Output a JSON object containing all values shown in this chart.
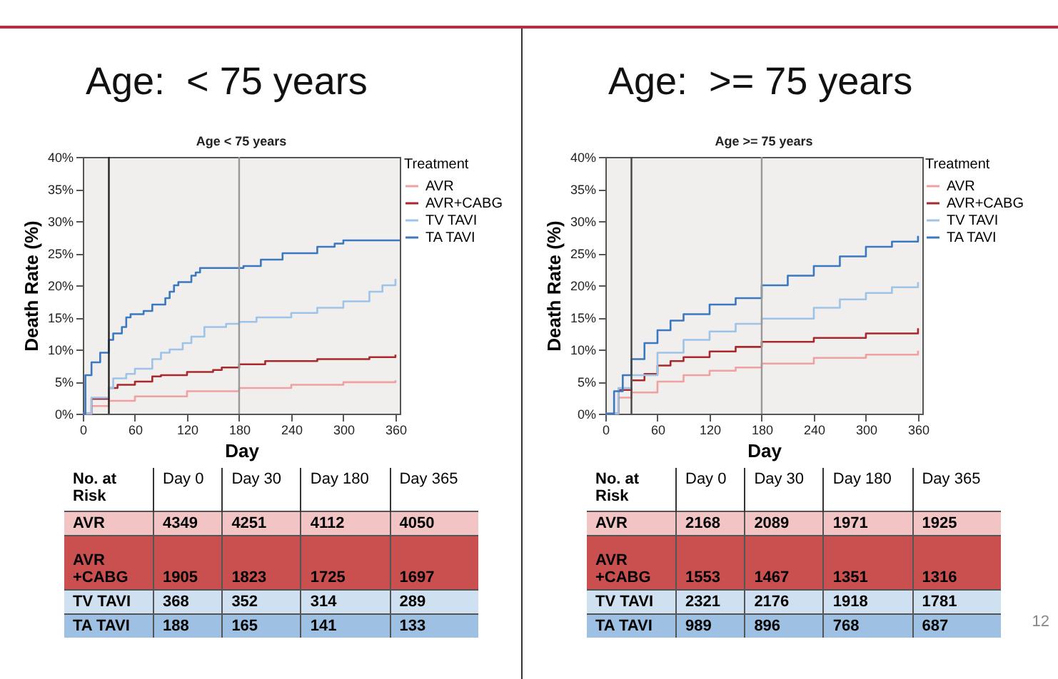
{
  "chart_data": [
    {
      "type": "step",
      "title": "Age:  < 75 years",
      "subtitle": "Age < 75 years",
      "xlabel": "Day",
      "ylabel": "Death Rate (%)",
      "legend_title": "Treatment",
      "legend": "right",
      "grid": false,
      "xlim": [
        0,
        365
      ],
      "xticks": [
        0,
        60,
        120,
        180,
        240,
        300,
        360
      ],
      "ylim": [
        0,
        40
      ],
      "yticks": [
        {
          "value": 0,
          "label": "0%"
        },
        {
          "value": 5,
          "label": "5%"
        },
        {
          "value": 10,
          "label": "10%"
        },
        {
          "value": 15,
          "label": "15%"
        },
        {
          "value": 20,
          "label": "20%"
        },
        {
          "value": 25,
          "label": "25%"
        },
        {
          "value": 30,
          "label": "30%"
        },
        {
          "value": 35,
          "label": "35%"
        },
        {
          "value": 40,
          "label": "40%"
        }
      ],
      "ref_lines": [
        {
          "axis": "x",
          "value": 30,
          "color": "#222222"
        },
        {
          "axis": "x",
          "value": 180,
          "color": "#999999"
        }
      ],
      "series": [
        {
          "name": "AVR",
          "color": "#f0a0a0",
          "x": [
            0,
            10,
            30,
            60,
            120,
            180,
            240,
            300,
            360
          ],
          "values": [
            0,
            1.2,
            2,
            2.7,
            3.5,
            4,
            4.5,
            4.9,
            5.2
          ]
        },
        {
          "name": "AVR+CABG",
          "color": "#a8282c",
          "x": [
            0,
            10,
            30,
            40,
            60,
            80,
            90,
            120,
            150,
            160,
            180,
            210,
            270,
            330,
            360
          ],
          "values": [
            0,
            2.3,
            4,
            4.5,
            5,
            5.8,
            6,
            6.5,
            6.8,
            7.2,
            7.7,
            8.2,
            8.5,
            8.8,
            9.2
          ]
        },
        {
          "name": "TV TAVI",
          "color": "#9dc3e6",
          "x": [
            0,
            10,
            30,
            35,
            50,
            60,
            80,
            90,
            100,
            115,
            125,
            140,
            165,
            180,
            200,
            240,
            270,
            300,
            330,
            345,
            360
          ],
          "values": [
            0,
            2.5,
            4,
            5.5,
            6.2,
            7,
            8.5,
            9.5,
            10,
            11,
            12,
            13.5,
            14,
            14.3,
            15,
            15.7,
            16.5,
            17.5,
            19,
            20,
            21
          ]
        },
        {
          "name": "TA TAVI",
          "color": "#3a78bf",
          "x": [
            0,
            3,
            10,
            20,
            30,
            35,
            45,
            50,
            55,
            70,
            80,
            95,
            100,
            105,
            110,
            125,
            130,
            135,
            185,
            205,
            230,
            270,
            290,
            300,
            365
          ],
          "values": [
            0,
            6,
            8,
            9.5,
            11.5,
            12.5,
            13.5,
            15,
            15.5,
            16,
            17,
            18,
            19,
            20,
            20.5,
            21.5,
            22,
            22.7,
            23,
            24,
            25,
            26,
            26.5,
            27,
            27
          ]
        }
      ],
      "annotations": [
        "No. at Risk",
        "Day 0",
        "Day 30",
        "Day 180",
        "Day 365",
        "AVR",
        "4349",
        "4251",
        "4112",
        "4050",
        "AVR +CABG",
        "1905",
        "1823",
        "1725",
        "1697",
        "TV TAVI",
        "368",
        "352",
        "314",
        "289",
        "TA TAVI",
        "188",
        "165",
        "141",
        "133"
      ]
    },
    {
      "type": "step",
      "title": "Age:  >= 75 years",
      "subtitle": "Age >= 75 years",
      "xlabel": "Day",
      "ylabel": "Death Rate (%)",
      "legend_title": "Treatment",
      "legend": "right",
      "grid": false,
      "xlim": [
        0,
        365
      ],
      "xticks": [
        0,
        60,
        120,
        180,
        240,
        300,
        360
      ],
      "ylim": [
        0,
        40
      ],
      "yticks": [
        {
          "value": 0,
          "label": "0%"
        },
        {
          "value": 5,
          "label": "5%"
        },
        {
          "value": 10,
          "label": "10%"
        },
        {
          "value": 15,
          "label": "15%"
        },
        {
          "value": 20,
          "label": "20%"
        },
        {
          "value": 25,
          "label": "25%"
        },
        {
          "value": 30,
          "label": "30%"
        },
        {
          "value": 35,
          "label": "35%"
        },
        {
          "value": 40,
          "label": "40%"
        }
      ],
      "ref_lines": [
        {
          "axis": "x",
          "value": 30,
          "color": "#444444"
        },
        {
          "axis": "x",
          "value": 180,
          "color": "#999999"
        }
      ],
      "series": [
        {
          "name": "AVR",
          "color": "#f0a0a0",
          "x": [
            0,
            15,
            30,
            60,
            90,
            120,
            150,
            180,
            240,
            300,
            360
          ],
          "values": [
            0,
            2.5,
            3.3,
            5,
            6,
            6.7,
            7.2,
            7.8,
            8.7,
            9.2,
            9.8
          ]
        },
        {
          "name": "AVR+CABG",
          "color": "#a8282c",
          "x": [
            0,
            15,
            30,
            45,
            60,
            75,
            90,
            120,
            150,
            180,
            240,
            300,
            360
          ],
          "values": [
            0,
            3.7,
            5.2,
            6.2,
            7.5,
            8.2,
            8.8,
            9.7,
            10.4,
            11.2,
            11.8,
            12.5,
            13.3
          ]
        },
        {
          "name": "TV TAVI",
          "color": "#9dc3e6",
          "x": [
            0,
            15,
            30,
            60,
            90,
            120,
            150,
            180,
            240,
            270,
            300,
            330,
            360
          ],
          "values": [
            0,
            4,
            6,
            9.5,
            11.5,
            12.8,
            14,
            14.8,
            16.5,
            17.8,
            18.8,
            19.7,
            20.5
          ]
        },
        {
          "name": "TA TAVI",
          "color": "#3a78bf",
          "x": [
            0,
            10,
            20,
            30,
            45,
            60,
            75,
            90,
            120,
            150,
            180,
            210,
            240,
            270,
            300,
            330,
            360
          ],
          "values": [
            0,
            3.5,
            6,
            8.5,
            11,
            13,
            14.5,
            15.5,
            17,
            18,
            20,
            21.5,
            23,
            24.5,
            26,
            26.8,
            27.7
          ]
        }
      ],
      "annotations": [
        "No. at Risk",
        "Day 0",
        "Day 30",
        "Day 180",
        "Day 365",
        "AVR",
        "2168",
        "2089",
        "1971",
        "1925",
        "AVR +CABG",
        "1553",
        "1467",
        "1351",
        "1316",
        "TV TAVI",
        "2321",
        "2176",
        "1918",
        "1781",
        "TA TAVI",
        "989",
        "896",
        "768",
        "687",
        "12"
      ]
    }
  ]
}
